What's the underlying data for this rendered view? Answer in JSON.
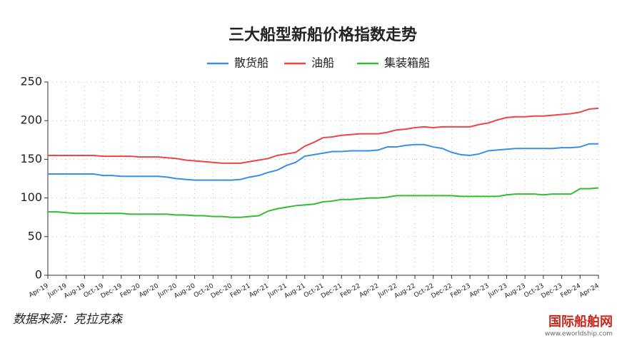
{
  "chart_data": {
    "type": "line",
    "title": "三大船型新船价格指数走势",
    "categories": [
      "Apr-19",
      null,
      "Jun-19",
      null,
      "Aug-19",
      null,
      "Oct-19",
      null,
      "Dec-19",
      null,
      "Feb-20",
      null,
      "Apr-20",
      null,
      "Jun-20",
      null,
      "Aug-20",
      null,
      "Oct-20",
      null,
      "Dec-20",
      null,
      "Feb-21",
      null,
      "Apr-21",
      null,
      "Jun-21",
      null,
      "Aug-21",
      null,
      "Oct-21",
      null,
      "Dec-21",
      null,
      "Feb-22",
      null,
      "Apr-22",
      null,
      "Jun-22",
      null,
      "Aug-22",
      null,
      "Oct-22",
      null,
      "Dec-22",
      null,
      "Feb-23",
      null,
      "Apr-23",
      null,
      "Jun-23",
      null,
      "Aug-23",
      null,
      "Oct-23",
      null,
      "Dec-23",
      null,
      "Feb-24",
      null,
      "Apr-24"
    ],
    "series": [
      {
        "name": "散货船",
        "color": "#3a8ee6",
        "values": [
          131,
          131,
          131,
          131,
          131,
          131,
          129,
          129,
          128,
          128,
          128,
          128,
          128,
          127,
          125,
          124,
          123,
          123,
          123,
          123,
          123,
          124,
          127,
          129,
          133,
          136,
          142,
          146,
          154,
          156,
          158,
          160,
          160,
          161,
          161,
          161,
          162,
          166,
          166,
          168,
          169,
          169,
          166,
          164,
          159,
          156,
          155,
          157,
          161,
          162,
          163,
          164,
          164,
          164,
          164,
          164,
          165,
          165,
          166,
          170,
          170
        ]
      },
      {
        "name": "油船",
        "color": "#ee4444",
        "values": [
          155,
          155,
          155,
          155,
          155,
          155,
          154,
          154,
          154,
          154,
          153,
          153,
          153,
          152,
          151,
          149,
          148,
          147,
          146,
          145,
          145,
          145,
          147,
          149,
          151,
          155,
          157,
          159,
          167,
          172,
          178,
          179,
          181,
          182,
          183,
          183,
          183,
          185,
          188,
          189,
          191,
          192,
          191,
          192,
          192,
          192,
          192,
          195,
          197,
          201,
          204,
          205,
          205,
          206,
          206,
          207,
          208,
          209,
          211,
          215,
          216
        ]
      },
      {
        "name": "集装箱船",
        "color": "#33bb33",
        "values": [
          82,
          82,
          81,
          80,
          80,
          80,
          80,
          80,
          80,
          79,
          79,
          79,
          79,
          79,
          78,
          78,
          77,
          77,
          76,
          76,
          75,
          75,
          76,
          77,
          83,
          86,
          88,
          90,
          91,
          92,
          95,
          96,
          98,
          98,
          99,
          100,
          100,
          101,
          103,
          103,
          103,
          103,
          103,
          103,
          103,
          102,
          102,
          102,
          102,
          102,
          104,
          105,
          105,
          105,
          104,
          105,
          105,
          105,
          112,
          112,
          113
        ]
      }
    ],
    "ylim": [
      0,
      250
    ],
    "yticks": [
      0,
      50,
      100,
      150,
      200,
      250
    ],
    "grid": true,
    "source": "数据来源：克拉克森",
    "watermark": [
      "国际船舶网",
      "www.eworldship.com"
    ]
  }
}
